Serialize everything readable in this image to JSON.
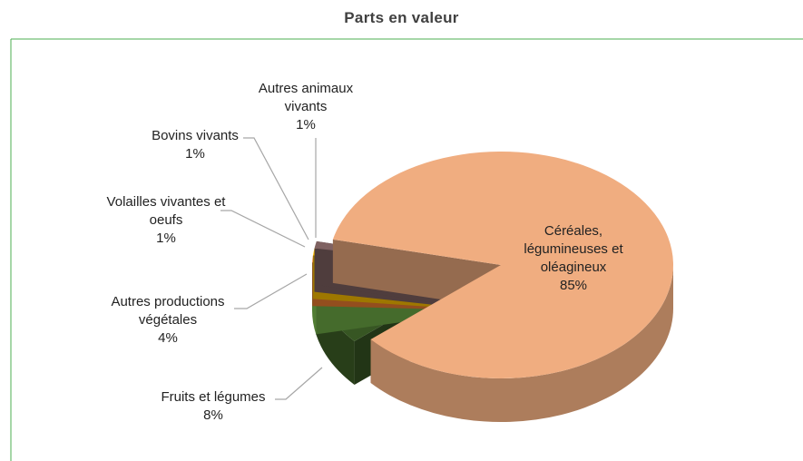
{
  "chart_data": {
    "type": "pie",
    "title": "Parts en valeur",
    "categories": [
      "Céréales, légumineuses et oléagineux",
      "Fruits et légumes",
      "Autres productions végétales",
      "Volailles vivantes et oeufs",
      "Bovins vivants",
      "Autres animaux vivants"
    ],
    "values": [
      85,
      8,
      4,
      1,
      1,
      1
    ],
    "value_labels": [
      "85%",
      "8%",
      "4%",
      "1%",
      "1%",
      "1%"
    ],
    "colors": [
      "#f0ad80",
      "#375623",
      "#70ad47",
      "#ed7d31",
      "#ffc000",
      "#7f6262"
    ]
  }
}
